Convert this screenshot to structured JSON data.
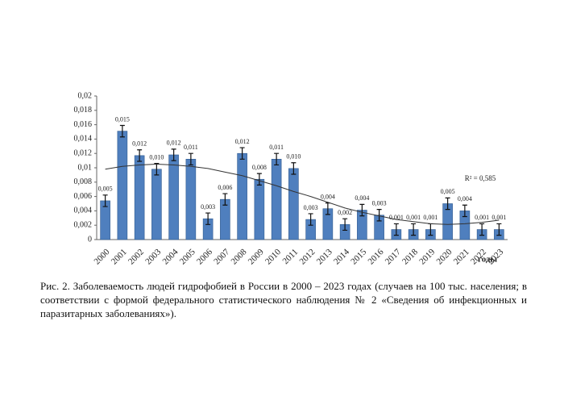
{
  "chart_data": {
    "type": "bar",
    "categories": [
      "2000",
      "2001",
      "2002",
      "2003",
      "2004",
      "2005",
      "2006",
      "2007",
      "2008",
      "2009",
      "2010",
      "2011",
      "2012",
      "2013",
      "2014",
      "2015",
      "2016",
      "2017",
      "2018",
      "2019",
      "2020",
      "2021",
      "2022",
      "2023"
    ],
    "values": [
      0.0054,
      0.0151,
      0.0117,
      0.0098,
      0.0118,
      0.0112,
      0.0029,
      0.0056,
      0.012,
      0.0084,
      0.0112,
      0.0099,
      0.0028,
      0.0043,
      0.0021,
      0.0041,
      0.0034,
      0.0014,
      0.0014,
      0.0014,
      0.005,
      0.004,
      0.0014,
      0.0014
    ],
    "value_labels": [
      "0,005",
      "0,015",
      "0,012",
      "0,010",
      "0,012",
      "0,011",
      "0,003",
      "0,006",
      "0,012",
      "0,008",
      "0,011",
      "0,010",
      "0,003",
      "0,004",
      "0,002",
      "0,004",
      "0,003",
      "0,001",
      "0,001",
      "0,001",
      "0,005",
      "0,004",
      "0,001",
      "0,001"
    ],
    "errors": [
      0.0008,
      0.0008,
      0.0008,
      0.0008,
      0.0008,
      0.0008,
      0.0008,
      0.0008,
      0.0008,
      0.0008,
      0.0008,
      0.0008,
      0.0008,
      0.0008,
      0.0008,
      0.0008,
      0.0008,
      0.0008,
      0.0008,
      0.0008,
      0.0008,
      0.0008,
      0.0008,
      0.0008
    ],
    "color": "#4f7fbe",
    "trendline": {
      "values": [
        0.0098,
        0.0102,
        0.0104,
        0.0105,
        0.0104,
        0.0102,
        0.0099,
        0.0094,
        0.0089,
        0.0082,
        0.0075,
        0.0067,
        0.006,
        0.0052,
        0.0044,
        0.0038,
        0.0033,
        0.0028,
        0.0025,
        0.0022,
        0.0021,
        0.0022,
        0.0024,
        0.0027
      ],
      "color": "#333333"
    },
    "annotation": "R² = 0,585",
    "x_label": "годы",
    "ylim": [
      0,
      0.02
    ],
    "yticks": [
      0,
      {
        "value": 0.002,
        "label": "0,002"
      },
      {
        "value": 0.004,
        "label": "0,004"
      },
      {
        "value": 0.006,
        "label": "0,006"
      },
      {
        "value": 0.008,
        "label": "0,008"
      },
      {
        "value": 0.01,
        "label": "0,01"
      },
      {
        "value": 0.012,
        "label": "0,012"
      },
      {
        "value": 0.014,
        "label": "0,014"
      },
      {
        "value": 0.016,
        "label": "0,016"
      },
      {
        "value": 0.018,
        "label": "0,018"
      },
      {
        "value": 0.02,
        "label": "0,02"
      }
    ],
    "grid": false,
    "caption": "Рис. 2. Заболеваемость людей гидрофобией в России в 2000 – 2023 годах (случаев на 100 тыс. населения; в соответствии с формой федерального статистического наблюдения № 2 «Сведения об инфекционных и паразитарных заболеваниях»)."
  }
}
